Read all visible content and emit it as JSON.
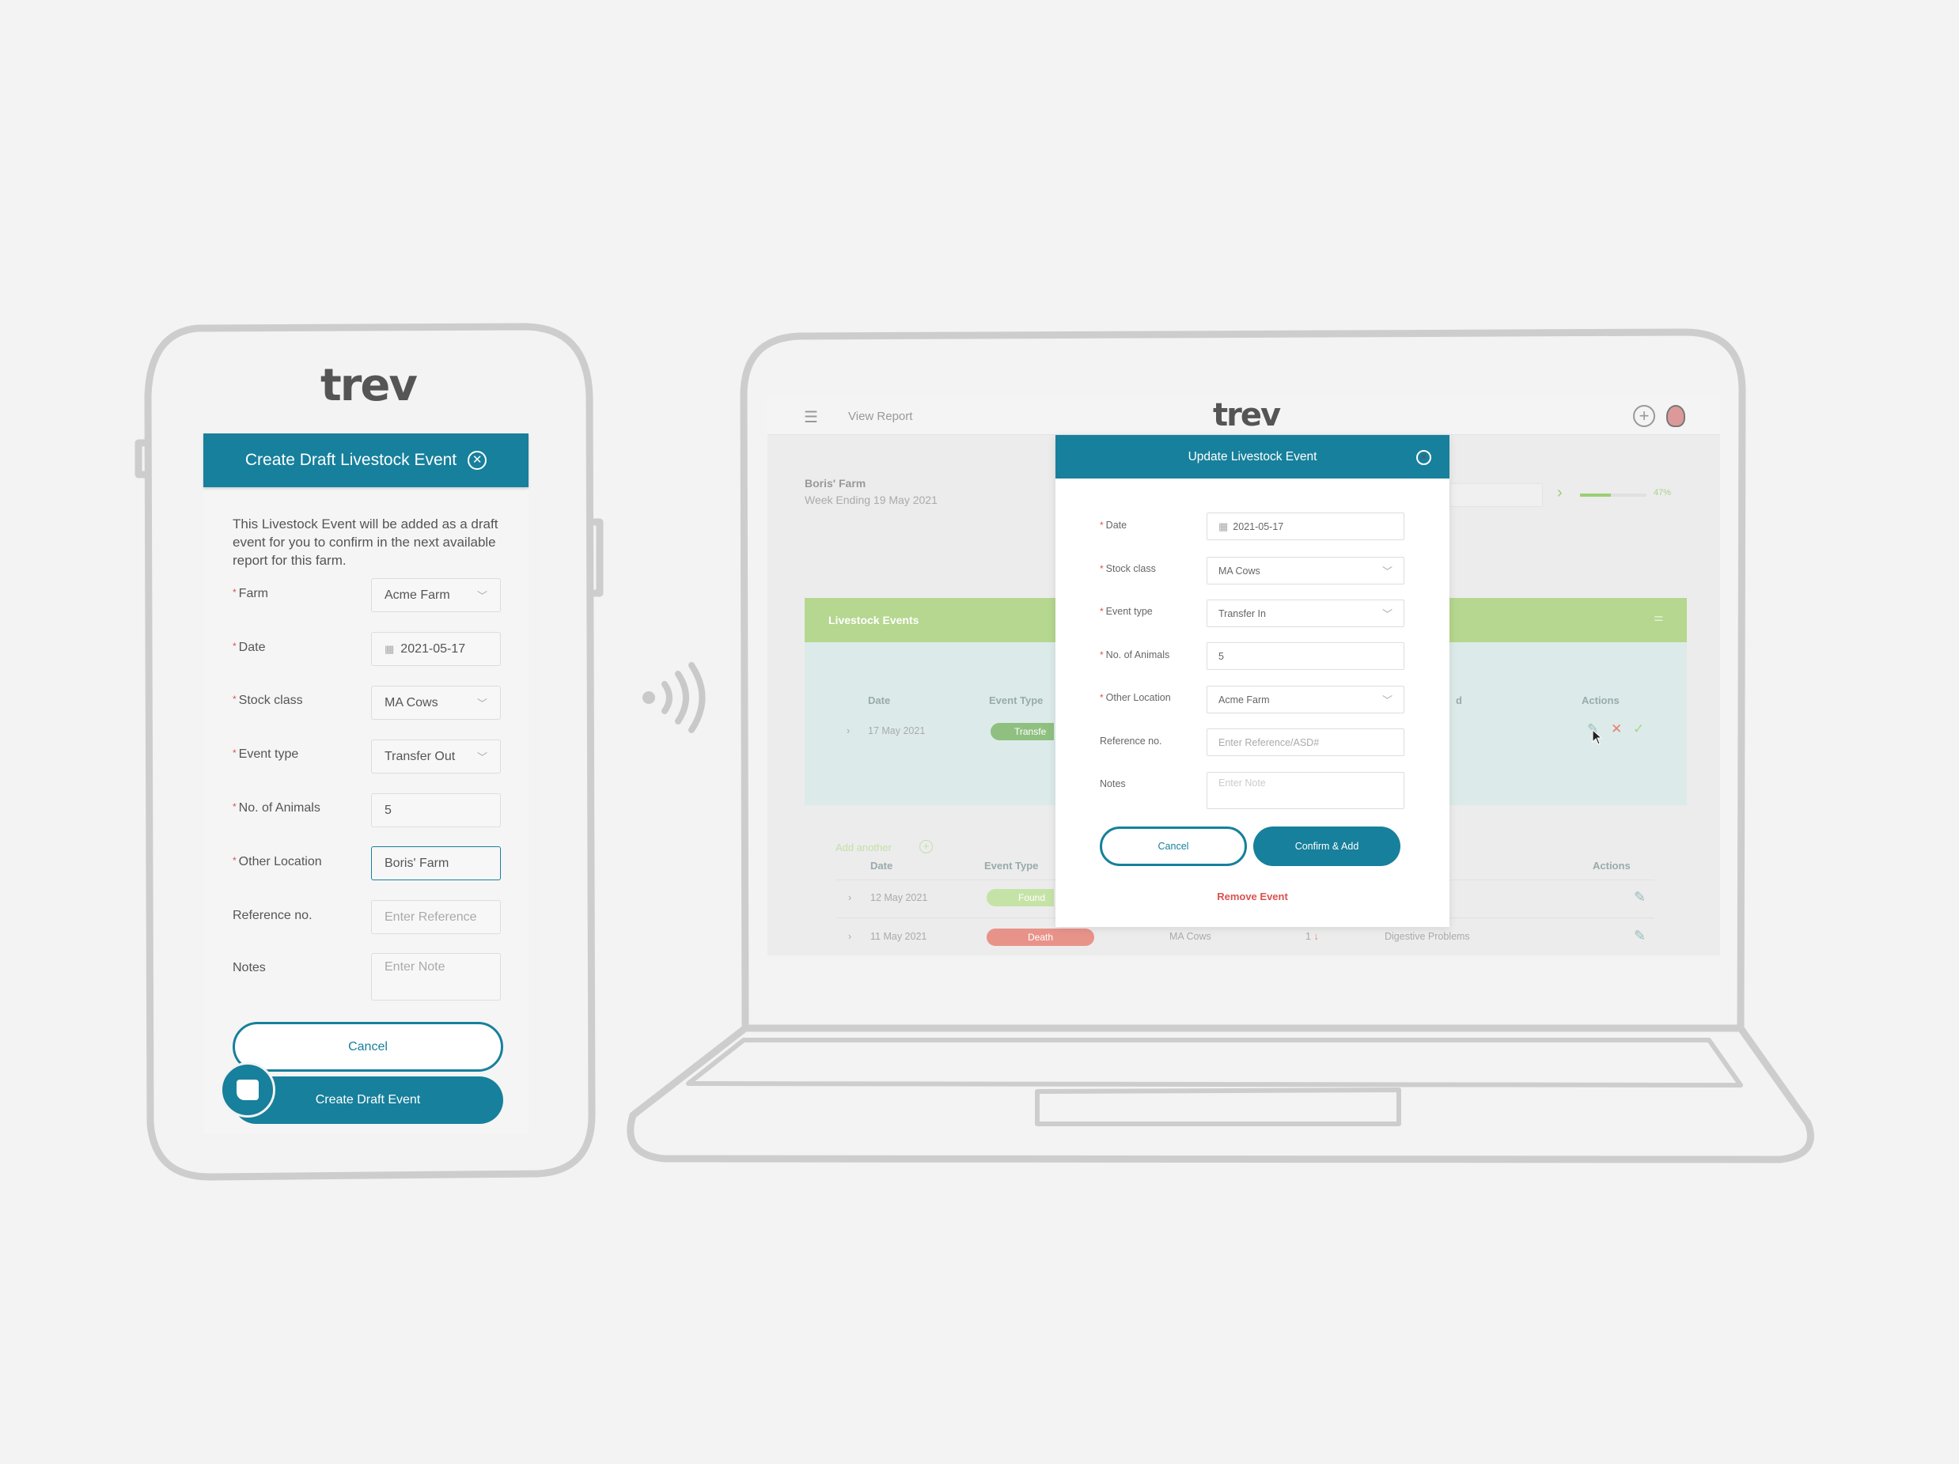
{
  "brand": "trev",
  "colors": {
    "primary": "#17809c",
    "green_bar": "#b5d78f",
    "required": "#d9534f",
    "danger": "#e57f73"
  },
  "phone": {
    "title": "Create Draft Livestock Event",
    "close_icon": "close-circle-icon",
    "description": "This Livestock Event will be added as a draft event for you to confirm in the next available report for this farm.",
    "fields": [
      {
        "label": "Farm",
        "required": true,
        "value": "Acme Farm",
        "type": "select"
      },
      {
        "label": "Date",
        "required": true,
        "value": "2021-05-17",
        "type": "date"
      },
      {
        "label": "Stock class",
        "required": true,
        "value": "MA Cows",
        "type": "select"
      },
      {
        "label": "Event type",
        "required": true,
        "value": "Transfer Out",
        "type": "select"
      },
      {
        "label": "No. of Animals",
        "required": true,
        "value": "5",
        "type": "text"
      },
      {
        "label": "Other Location",
        "required": true,
        "value": "Boris' Farm",
        "type": "text"
      },
      {
        "label": "Reference no.",
        "required": false,
        "placeholder": "Enter Reference",
        "type": "text"
      },
      {
        "label": "Notes",
        "required": false,
        "placeholder": "Enter Note",
        "type": "textarea"
      }
    ],
    "cancel": "Cancel",
    "submit": "Create Draft Event"
  },
  "laptop": {
    "nav": {
      "title": "View Report"
    },
    "farm": "Boris' Farm",
    "week": "Week Ending 19 May 2021",
    "progress": {
      "percent": 47,
      "label": "47%"
    },
    "section": "Livestock Events",
    "draft_table": {
      "headers": [
        "Date",
        "Event Type",
        "d",
        "Actions"
      ],
      "rows": [
        {
          "date": "17 May 2021",
          "type": "Transfe"
        }
      ]
    },
    "add_another": "Add another",
    "table": {
      "headers": [
        "Date",
        "Event Type",
        "Actions"
      ],
      "rows": [
        {
          "date": "12 May 2021",
          "type": "Found"
        },
        {
          "date": "11 May 2021",
          "type": "Death",
          "stock": "MA Cows",
          "count": "1",
          "reason": "Digestive Problems"
        }
      ]
    },
    "modal": {
      "title": "Update Livestock Event",
      "fields": [
        {
          "label": "Date",
          "value": "2021-05-17"
        },
        {
          "label": "Stock class",
          "value": "MA Cows"
        },
        {
          "label": "Event type",
          "value": "Transfer In"
        },
        {
          "label": "No. of Animals",
          "value": "5"
        },
        {
          "label": "Other Location",
          "value": "Acme Farm"
        },
        {
          "label": "Reference no.",
          "placeholder": "Enter Reference/ASD#"
        },
        {
          "label": "Notes",
          "placeholder": "Enter Note"
        }
      ],
      "cancel": "Cancel",
      "confirm": "Confirm & Add",
      "remove": "Remove Event"
    }
  }
}
